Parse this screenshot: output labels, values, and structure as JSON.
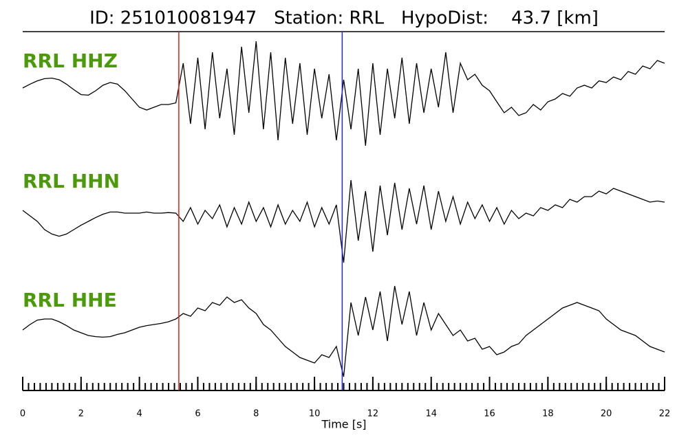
{
  "chart_data": {
    "type": "line",
    "title": "ID: 251010081947   Station: RRL   HypoDist:    43.7 [km]",
    "xlabel": "Time [s]",
    "xlim": [
      0,
      22
    ],
    "xticks": [
      0,
      2,
      4,
      6,
      8,
      10,
      12,
      14,
      16,
      18,
      20,
      22
    ],
    "xminor": 0.2,
    "ylim": [
      -1,
      1
    ],
    "label_color": "#4a9a0a",
    "x": [
      0,
      0.25,
      0.5,
      0.75,
      1,
      1.25,
      1.5,
      1.75,
      2,
      2.25,
      2.5,
      2.75,
      3,
      3.25,
      3.5,
      3.75,
      4,
      4.25,
      4.5,
      4.75,
      5,
      5.25,
      5.5,
      5.75,
      6,
      6.25,
      6.5,
      6.75,
      7,
      7.25,
      7.5,
      7.75,
      8,
      8.25,
      8.5,
      8.75,
      9,
      9.25,
      9.5,
      9.75,
      10,
      10.25,
      10.5,
      10.75,
      11,
      11.25,
      11.5,
      11.75,
      12,
      12.25,
      12.5,
      12.75,
      13,
      13.25,
      13.5,
      13.75,
      14,
      14.25,
      14.5,
      14.75,
      15,
      15.25,
      15.5,
      15.75,
      16,
      16.25,
      16.5,
      16.75,
      17,
      17.25,
      17.5,
      17.75,
      18,
      18.25,
      18.5,
      18.75,
      19,
      19.25,
      19.5,
      19.75,
      20,
      20.25,
      20.5,
      20.75,
      21,
      21.25,
      21.5,
      21.75,
      22
    ],
    "series": [
      {
        "name": "RRL HHZ",
        "color": "#000000",
        "values": [
          0.15,
          0.22,
          0.28,
          0.32,
          0.33,
          0.3,
          0.22,
          0.12,
          0.03,
          0.02,
          0.1,
          0.2,
          0.25,
          0.22,
          0.1,
          -0.05,
          -0.2,
          -0.25,
          -0.2,
          -0.15,
          -0.15,
          -0.12,
          0.6,
          -0.5,
          0.7,
          -0.6,
          0.8,
          -0.4,
          0.5,
          -0.7,
          0.9,
          -0.3,
          1.0,
          -0.6,
          0.8,
          -0.8,
          0.7,
          -0.5,
          0.6,
          -0.7,
          0.5,
          -0.4,
          0.4,
          -0.8,
          0.3,
          -0.6,
          0.5,
          -0.9,
          0.6,
          -0.7,
          0.5,
          -0.4,
          0.7,
          -0.5,
          0.6,
          -0.3,
          0.5,
          -0.2,
          0.8,
          -0.3,
          0.6,
          0.3,
          0.4,
          0.2,
          0.1,
          -0.1,
          -0.3,
          -0.2,
          -0.35,
          -0.3,
          -0.15,
          -0.25,
          -0.1,
          -0.05,
          0.05,
          0.0,
          0.15,
          0.2,
          0.15,
          0.28,
          0.25,
          0.35,
          0.3,
          0.45,
          0.4,
          0.55,
          0.5,
          0.65,
          0.6
        ]
      },
      {
        "name": "RRL HHN",
        "color": "#000000",
        "values": [
          0.05,
          -0.05,
          -0.15,
          -0.3,
          -0.38,
          -0.42,
          -0.38,
          -0.3,
          -0.22,
          -0.15,
          -0.08,
          -0.02,
          0.02,
          0.02,
          0.0,
          0.0,
          0.0,
          0.02,
          0.0,
          0.0,
          0.01,
          0.0,
          -0.15,
          0.1,
          -0.2,
          0.05,
          -0.1,
          0.15,
          -0.25,
          0.1,
          -0.2,
          0.2,
          -0.15,
          0.1,
          -0.25,
          0.15,
          -0.2,
          0.05,
          -0.15,
          0.2,
          -0.25,
          0.1,
          -0.2,
          0.15,
          -0.9,
          0.6,
          -0.5,
          0.4,
          -0.7,
          0.5,
          -0.4,
          0.55,
          -0.3,
          0.45,
          -0.2,
          0.5,
          -0.3,
          0.4,
          -0.15,
          0.3,
          -0.2,
          0.2,
          -0.1,
          0.15,
          -0.15,
          0.1,
          -0.2,
          0.05,
          -0.1,
          0.0,
          -0.05,
          0.1,
          0.05,
          0.15,
          0.1,
          0.25,
          0.2,
          0.3,
          0.3,
          0.4,
          0.35,
          0.45,
          0.4,
          0.35,
          0.3,
          0.25,
          0.2,
          0.22,
          0.2
        ]
      },
      {
        "name": "RRL HHE",
        "color": "#000000",
        "values": [
          0.0,
          0.1,
          0.18,
          0.2,
          0.2,
          0.15,
          0.08,
          0.0,
          -0.05,
          -0.1,
          -0.12,
          -0.13,
          -0.12,
          -0.08,
          -0.05,
          0.0,
          0.05,
          0.08,
          0.1,
          0.12,
          0.15,
          0.2,
          0.3,
          0.25,
          0.4,
          0.35,
          0.5,
          0.45,
          0.6,
          0.5,
          0.55,
          0.4,
          0.3,
          0.1,
          0.0,
          -0.15,
          -0.3,
          -0.4,
          -0.5,
          -0.55,
          -0.6,
          -0.45,
          -0.5,
          -0.3,
          -0.85,
          0.5,
          -0.1,
          0.6,
          0.0,
          0.7,
          -0.2,
          0.8,
          0.1,
          0.7,
          -0.1,
          0.5,
          0.0,
          0.3,
          0.1,
          -0.1,
          0.0,
          -0.2,
          -0.15,
          -0.35,
          -0.3,
          -0.45,
          -0.4,
          -0.3,
          -0.25,
          -0.1,
          0.0,
          0.1,
          0.2,
          0.3,
          0.4,
          0.45,
          0.5,
          0.45,
          0.4,
          0.35,
          0.2,
          0.1,
          0.0,
          -0.05,
          -0.1,
          -0.2,
          -0.3,
          -0.35,
          -0.4
        ]
      }
    ],
    "markers": [
      {
        "x": 5.35,
        "color": "#e0201b"
      },
      {
        "x": 10.95,
        "color": "#1f2bd0"
      }
    ]
  }
}
